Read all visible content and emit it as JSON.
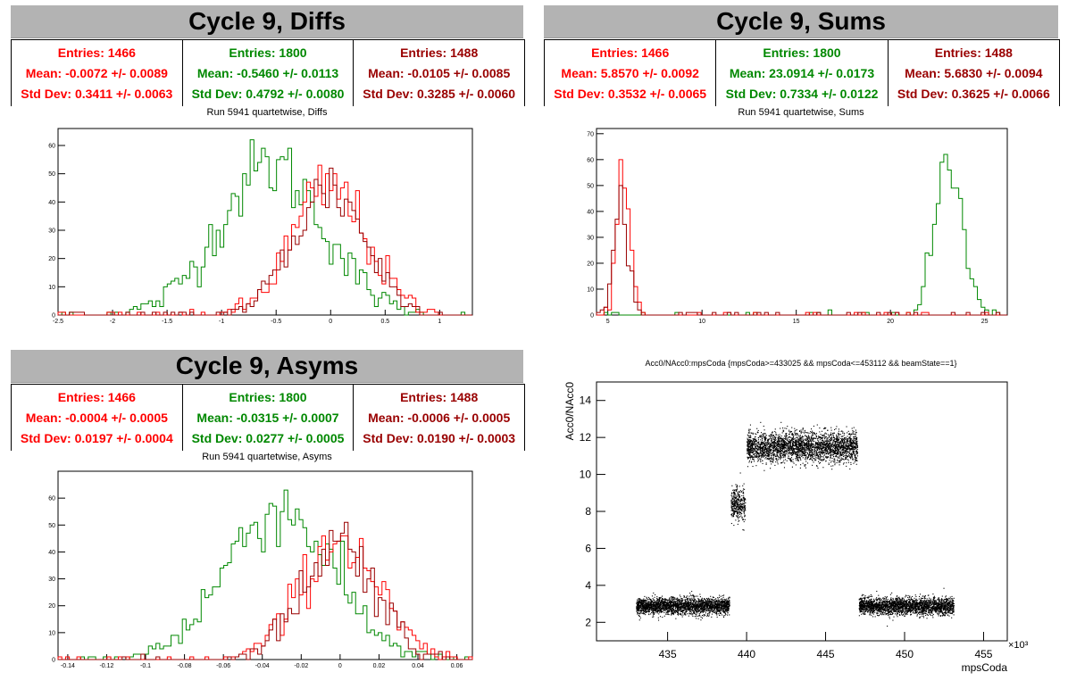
{
  "panels": {
    "diffs": {
      "title": "Cycle 9, Diffs",
      "stats": [
        {
          "entries": "Entries: 1466",
          "mean": "Mean: -0.0072 +/- 0.0089",
          "std": "Std Dev: 0.3411 +/- 0.0063",
          "color": "#ff0000"
        },
        {
          "entries": "Entries: 1800",
          "mean": "Mean: -0.5460 +/- 0.0113",
          "std": "Std Dev: 0.4792 +/- 0.0080",
          "color": "#008800"
        },
        {
          "entries": "Entries: 1488",
          "mean": "Mean: -0.0105 +/- 0.0085",
          "std": "Std Dev: 0.3285 +/- 0.0060",
          "color": "#990000"
        }
      ],
      "subtitle": "Run 5941 quartetwise, Diffs"
    },
    "sums": {
      "title": "Cycle 9, Sums",
      "stats": [
        {
          "entries": "Entries: 1466",
          "mean": "Mean: 5.8570 +/- 0.0092",
          "std": "Std Dev: 0.3532 +/- 0.0065",
          "color": "#ff0000"
        },
        {
          "entries": "Entries: 1800",
          "mean": "Mean: 23.0914 +/- 0.0173",
          "std": "Std Dev: 0.7334 +/- 0.0122",
          "color": "#008800"
        },
        {
          "entries": "Entries: 1488",
          "mean": "Mean: 5.6830 +/- 0.0094",
          "std": "Std Dev: 0.3625 +/- 0.0066",
          "color": "#990000"
        }
      ],
      "subtitle": "Run 5941 quartetwise, Sums"
    },
    "asyms": {
      "title": "Cycle 9, Asyms",
      "stats": [
        {
          "entries": "Entries: 1466",
          "mean": "Mean: -0.0004 +/- 0.0005",
          "std": "Std Dev: 0.0197 +/- 0.0004",
          "color": "#ff0000"
        },
        {
          "entries": "Entries: 1800",
          "mean": "Mean: -0.0315 +/- 0.0007",
          "std": "Std Dev: 0.0277 +/- 0.0005",
          "color": "#008800"
        },
        {
          "entries": "Entries: 1488",
          "mean": "Mean: -0.0006 +/- 0.0005",
          "std": "Std Dev: 0.0190 +/- 0.0003",
          "color": "#990000"
        }
      ],
      "subtitle": "Run 5941 quartetwise, Asyms"
    },
    "scatter": {
      "title": "Acc0/NAcc0:mpsCoda {mpsCoda>=433025 && mpsCoda<=453112 && beamState==1}",
      "xlabel": "mpsCoda",
      "ylabel": "Acc0/NAcc0",
      "exponent": "×10³"
    }
  },
  "chart_data": [
    {
      "type": "step-histogram",
      "title": "Run 5941 quartetwise, Diffs",
      "xlim": [
        -2.5,
        1.3
      ],
      "ylim": [
        0,
        66
      ],
      "xticks": [
        -2.5,
        -2,
        -1.5,
        -1,
        -0.5,
        0,
        0.5,
        1
      ],
      "xticklabels": [
        "-2.5",
        "-2",
        "-1.5",
        "-1",
        "-0.5",
        "0",
        "0.5",
        "1"
      ],
      "yticks": [
        0,
        10,
        20,
        30,
        40,
        50,
        60
      ],
      "series": [
        {
          "color": "#008800",
          "entries": 1800,
          "mean": -0.546,
          "std": 0.4792,
          "peak": 62
        },
        {
          "color": "#ff0000",
          "entries": 1466,
          "mean": -0.0072,
          "std": 0.3411,
          "peak": 53
        },
        {
          "color": "#990000",
          "entries": 1488,
          "mean": -0.0105,
          "std": 0.3285,
          "peak": 53
        }
      ]
    },
    {
      "type": "step-histogram",
      "title": "Run 5941 quartetwise, Sums",
      "xlim": [
        4.4,
        26.2
      ],
      "ylim": [
        0,
        72
      ],
      "xticks": [
        5,
        10,
        15,
        20,
        25
      ],
      "xticklabels": [
        "5",
        "10",
        "15",
        "20",
        "25"
      ],
      "yticks": [
        0,
        10,
        20,
        30,
        40,
        50,
        60,
        70
      ],
      "series": [
        {
          "color": "#008800",
          "entries": 1800,
          "mean": 23.0914,
          "std": 0.7334,
          "peak": 69
        },
        {
          "color": "#ff0000",
          "entries": 1466,
          "mean": 5.857,
          "std": 0.3532,
          "peak": 60
        },
        {
          "color": "#990000",
          "entries": 1488,
          "mean": 5.683,
          "std": 0.3625,
          "peak": 58
        }
      ]
    },
    {
      "type": "step-histogram",
      "title": "Run 5941 quartetwise, Asyms",
      "xlim": [
        -0.145,
        0.068
      ],
      "ylim": [
        0,
        70
      ],
      "xticks": [
        -0.14,
        -0.12,
        -0.1,
        -0.08,
        -0.06,
        -0.04,
        -0.02,
        0,
        0.02,
        0.04,
        0.06
      ],
      "xticklabels": [
        "-0.14",
        "-0.12",
        "-0.1",
        "-0.08",
        "-0.06",
        "-0.04",
        "-0.02",
        "0",
        "0.02",
        "0.04",
        "0.06"
      ],
      "yticks": [
        0,
        10,
        20,
        30,
        40,
        50,
        60
      ],
      "series": [
        {
          "color": "#008800",
          "entries": 1800,
          "mean": -0.0315,
          "std": 0.0277,
          "peak": 66
        },
        {
          "color": "#ff0000",
          "entries": 1466,
          "mean": -0.0004,
          "std": 0.0197,
          "peak": 53
        },
        {
          "color": "#990000",
          "entries": 1488,
          "mean": -0.0006,
          "std": 0.019,
          "peak": 52
        }
      ]
    },
    {
      "type": "scatter",
      "title": "Acc0/NAcc0:mpsCoda {mpsCoda>=433025 && mpsCoda<=453112 && beamState==1}",
      "xlabel": "mpsCoda",
      "ylabel": "Acc0/NAcc0",
      "xlim": [
        430.5,
        456.5
      ],
      "ylim": [
        1,
        15
      ],
      "xticks": [
        435,
        440,
        445,
        450,
        455
      ],
      "yticks": [
        2,
        4,
        6,
        8,
        10,
        12,
        14
      ],
      "clusters": [
        {
          "x": [
            433.0,
            438.9
          ],
          "y_center": 2.9,
          "y_spread": 0.5
        },
        {
          "x": [
            439.0,
            439.9
          ],
          "y_center": 8.4,
          "y_spread": 1.0
        },
        {
          "x": [
            440.0,
            447.0
          ],
          "y_center": 11.5,
          "y_spread": 0.9
        },
        {
          "x": [
            447.1,
            453.1
          ],
          "y_center": 2.9,
          "y_spread": 0.5
        }
      ]
    }
  ]
}
